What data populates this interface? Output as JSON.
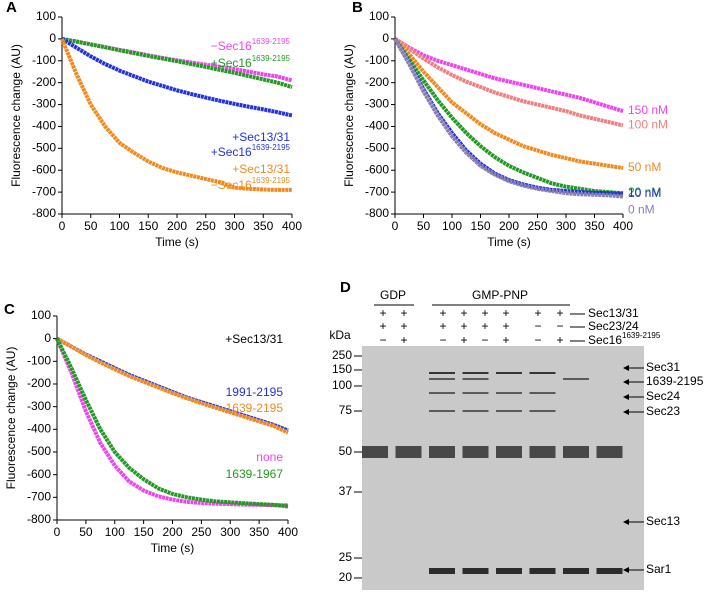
{
  "chart_data": [
    {
      "type": "line",
      "panel": "A",
      "xlabel": "Time (s)",
      "ylabel": "Fluorescence change (AU)",
      "x": [
        0,
        25,
        50,
        75,
        100,
        125,
        150,
        175,
        200,
        225,
        250,
        275,
        300,
        325,
        350,
        375,
        400
      ],
      "xlim": [
        0,
        400
      ],
      "ylim": [
        -800,
        100
      ],
      "xticks": [
        0,
        50,
        100,
        150,
        200,
        250,
        300,
        350,
        400
      ],
      "yticks": [
        100,
        0,
        -100,
        -200,
        -300,
        -400,
        -500,
        -600,
        -700,
        -800
      ],
      "series": [
        {
          "name_lines": [
            {
              "text": "−Sec16",
              "sup": "1639-2195"
            }
          ],
          "color": "#ee44ee",
          "values": [
            0,
            -12,
            -25,
            -38,
            -50,
            -62,
            -75,
            -87,
            -98,
            -108,
            -118,
            -128,
            -138,
            -150,
            -162,
            -172,
            -190
          ]
        },
        {
          "name_lines": [
            {
              "text": "+Sec16",
              "sup": "1639-2195"
            }
          ],
          "color": "#229922",
          "values": [
            0,
            -12,
            -25,
            -38,
            -52,
            -65,
            -78,
            -90,
            -102,
            -115,
            -128,
            -142,
            -155,
            -170,
            -185,
            -200,
            -220
          ]
        },
        {
          "name_lines": [
            {
              "text": "+Sec13/31"
            },
            {
              "text": "+Sec16",
              "sup": "1639-2195"
            }
          ],
          "color": "#2233dd",
          "values": [
            0,
            -40,
            -80,
            -115,
            -145,
            -170,
            -195,
            -215,
            -235,
            -252,
            -268,
            -283,
            -297,
            -310,
            -322,
            -335,
            -350
          ]
        },
        {
          "name_lines": [
            {
              "text": "+Sec13/31"
            },
            {
              "text": "−Sec16",
              "sup": "1639-2195"
            }
          ],
          "color": "#f08a1e",
          "values": [
            0,
            -160,
            -300,
            -400,
            -475,
            -520,
            -560,
            -590,
            -610,
            -625,
            -640,
            -655,
            -680,
            -685,
            -688,
            -690,
            -690
          ]
        }
      ]
    },
    {
      "type": "line",
      "panel": "B",
      "xlabel": "Time (s)",
      "ylabel": "Fluorescence change (AU)",
      "x": [
        0,
        25,
        50,
        75,
        100,
        125,
        150,
        175,
        200,
        225,
        250,
        275,
        300,
        325,
        350,
        375,
        400
      ],
      "xlim": [
        0,
        400
      ],
      "ylim": [
        -800,
        100
      ],
      "xticks": [
        0,
        50,
        100,
        150,
        200,
        250,
        300,
        350,
        400
      ],
      "yticks": [
        100,
        0,
        -100,
        -200,
        -300,
        -400,
        -500,
        -600,
        -700,
        -800
      ],
      "series": [
        {
          "name_lines": [
            {
              "text": "150 nM"
            }
          ],
          "color": "#ee44ee",
          "values": [
            0,
            -40,
            -75,
            -100,
            -120,
            -140,
            -160,
            -180,
            -195,
            -210,
            -225,
            -240,
            -255,
            -270,
            -290,
            -310,
            -330
          ]
        },
        {
          "name_lines": [
            {
              "text": "100 nM"
            }
          ],
          "color": "#f07f7f",
          "values": [
            0,
            -45,
            -90,
            -130,
            -165,
            -195,
            -220,
            -245,
            -265,
            -285,
            -300,
            -315,
            -330,
            -350,
            -365,
            -380,
            -395
          ]
        },
        {
          "name_lines": [
            {
              "text": "50 nM"
            }
          ],
          "color": "#f08a1e",
          "values": [
            0,
            -70,
            -150,
            -220,
            -290,
            -340,
            -390,
            -430,
            -460,
            -490,
            -510,
            -530,
            -545,
            -560,
            -570,
            -580,
            -590
          ]
        },
        {
          "name_lines": [
            {
              "text": "20 nM"
            }
          ],
          "color": "#229922",
          "values": [
            0,
            -95,
            -190,
            -280,
            -360,
            -430,
            -490,
            -540,
            -580,
            -610,
            -635,
            -660,
            -675,
            -685,
            -695,
            -700,
            -705
          ]
        },
        {
          "name_lines": [
            {
              "text": "10 nM"
            }
          ],
          "color": "#2233dd",
          "values": [
            0,
            -110,
            -230,
            -340,
            -430,
            -510,
            -570,
            -615,
            -645,
            -665,
            -680,
            -690,
            -695,
            -700,
            -703,
            -705,
            -708
          ]
        },
        {
          "name_lines": [
            {
              "text": "0 nM"
            }
          ],
          "color": "#8a7fb0",
          "values": [
            0,
            -115,
            -240,
            -350,
            -445,
            -520,
            -580,
            -620,
            -650,
            -670,
            -685,
            -695,
            -705,
            -710,
            -712,
            -715,
            -720
          ]
        }
      ]
    },
    {
      "type": "line",
      "panel": "C",
      "xlabel": "Time (s)",
      "ylabel": "Fluorescence change (AU)",
      "annotation": "+Sec13/31",
      "x": [
        0,
        25,
        50,
        75,
        100,
        125,
        150,
        175,
        200,
        225,
        250,
        275,
        300,
        325,
        350,
        375,
        400
      ],
      "xlim": [
        0,
        400
      ],
      "ylim": [
        -800,
        100
      ],
      "xticks": [
        0,
        50,
        100,
        150,
        200,
        250,
        300,
        350,
        400
      ],
      "yticks": [
        100,
        0,
        -100,
        -200,
        -300,
        -400,
        -500,
        -600,
        -700,
        -800
      ],
      "series": [
        {
          "name_lines": [
            {
              "text": "1991-2195"
            }
          ],
          "color": "#2233dd",
          "values": [
            0,
            -35,
            -70,
            -100,
            -130,
            -160,
            -185,
            -210,
            -235,
            -260,
            -280,
            -300,
            -320,
            -340,
            -360,
            -380,
            -405
          ]
        },
        {
          "name_lines": [
            {
              "text": "1639-2195"
            }
          ],
          "color": "#f08a1e",
          "values": [
            0,
            -35,
            -72,
            -105,
            -135,
            -165,
            -190,
            -215,
            -240,
            -263,
            -285,
            -305,
            -325,
            -345,
            -365,
            -385,
            -415
          ]
        },
        {
          "name_lines": [
            {
              "text": "none"
            }
          ],
          "color": "#ee44ee",
          "values": [
            0,
            -150,
            -320,
            -460,
            -560,
            -630,
            -670,
            -695,
            -710,
            -720,
            -725,
            -728,
            -730,
            -732,
            -733,
            -735,
            -735
          ]
        },
        {
          "name_lines": [
            {
              "text": "1639-1967"
            }
          ],
          "color": "#229922",
          "values": [
            0,
            -130,
            -270,
            -400,
            -500,
            -570,
            -620,
            -660,
            -685,
            -700,
            -710,
            -718,
            -722,
            -726,
            -730,
            -733,
            -740
          ]
        }
      ]
    }
  ],
  "gel": {
    "panel": "D",
    "groups": [
      "GDP",
      "GMP-PNP"
    ],
    "kda_label": "kDa",
    "rows": [
      {
        "label": "Sec13/31",
        "signs": [
          "+",
          "+",
          "+",
          "+",
          "+",
          "+",
          "+",
          "+"
        ]
      },
      {
        "label": "Sec23/24",
        "signs": [
          "+",
          "+",
          "+",
          "+",
          "+",
          "+",
          "−",
          "−"
        ]
      },
      {
        "label": "Sec16",
        "sup": "1639-2195",
        "signs": [
          "−",
          "+",
          "−",
          "+",
          "−",
          "+",
          "−",
          "+"
        ]
      }
    ],
    "markers": [
      250,
      150,
      100,
      75,
      50,
      37,
      25,
      20
    ],
    "bands": [
      "Sec31",
      "1639-2195",
      "Sec24",
      "Sec23",
      "Sec13",
      "Sar1"
    ]
  }
}
